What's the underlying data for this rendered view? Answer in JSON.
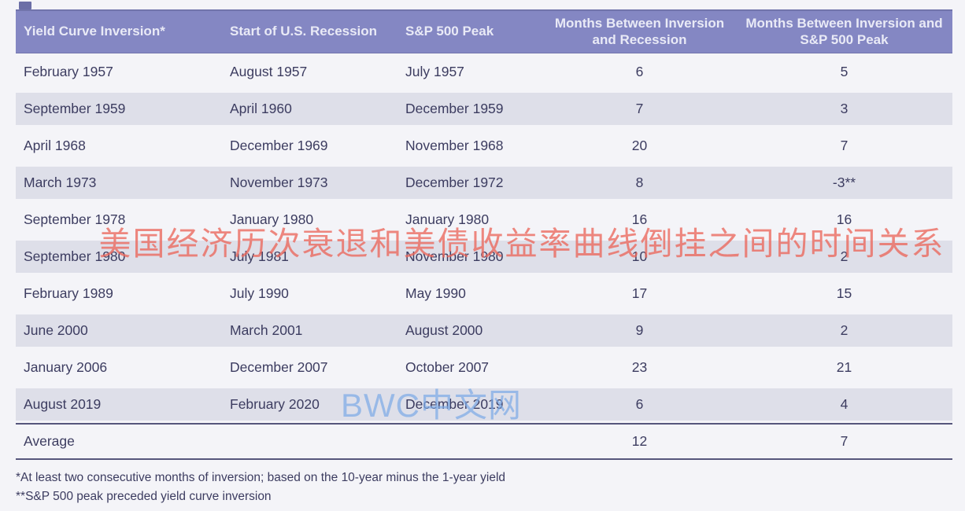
{
  "chart_data": {
    "type": "table",
    "columns": [
      "Yield Curve Inversion*",
      "Start of U.S. Recession",
      "S&P 500 Peak",
      "Months Between Inversion and Recession",
      "Months Between Inversion and S&P 500 Peak"
    ],
    "rows": [
      [
        "February 1957",
        "August 1957",
        "July 1957",
        "6",
        "5"
      ],
      [
        "September 1959",
        "April 1960",
        "December 1959",
        "7",
        "3"
      ],
      [
        "April 1968",
        "December 1969",
        "November 1968",
        "20",
        "7"
      ],
      [
        "March 1973",
        "November 1973",
        "December 1972",
        "8",
        "-3**"
      ],
      [
        "September 1978",
        "January 1980",
        "January 1980",
        "16",
        "16"
      ],
      [
        "September 1980",
        "July 1981",
        "November 1980",
        "10",
        "2"
      ],
      [
        "February 1989",
        "July 1990",
        "May 1990",
        "17",
        "15"
      ],
      [
        "June 2000",
        "March 2001",
        "August 2000",
        "9",
        "2"
      ],
      [
        "January 2006",
        "December 2007",
        "October 2007",
        "23",
        "21"
      ],
      [
        "August 2019",
        "February 2020",
        "December 2019",
        "6",
        "4"
      ],
      [
        "Average",
        "",
        "",
        "12",
        "7"
      ]
    ],
    "footnotes": [
      "*At least two consecutive months of inversion; based on the 10-year minus the 1-year yield",
      "**S&P 500 peak preceded yield curve inversion"
    ]
  },
  "watermarks": {
    "title_cn": "美国经济历次衰退和美债收益率曲线倒挂之间的时间关系",
    "site_cn": "BWC中文网"
  },
  "colors": {
    "header_bg": "#8487c3",
    "row_shaded": "#dedfe9",
    "body_text": "#3c3c60",
    "watermark_red": "#eb675b",
    "watermark_blue": "#7daae6"
  }
}
